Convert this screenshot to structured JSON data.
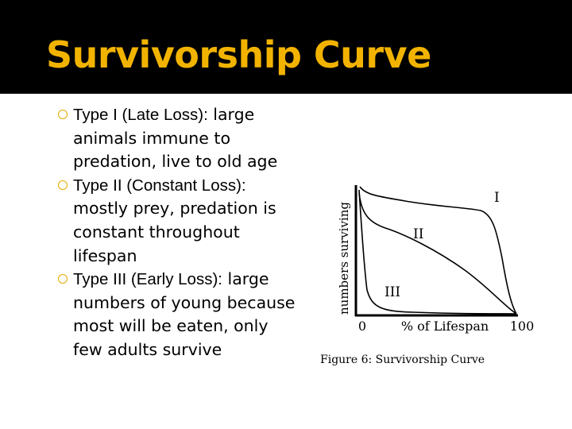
{
  "slide": {
    "title": "Survivorship Curve"
  },
  "bullets": [
    {
      "heading": "Type I (Late Loss):",
      "text": " large animals immune to predation, live to old age"
    },
    {
      "heading": "Type II (Constant Loss):",
      "text": " mostly prey, predation is constant throughout lifespan"
    },
    {
      "heading": "Type III (Early Loss):",
      "text": " large numbers of young because most will be eaten, only few adults survive"
    }
  ],
  "figure": {
    "caption": "Figure 6: Survivorship Curve",
    "y_axis_label": "numbers surviving",
    "x_axis_label": "% of Lifespan",
    "x_tick_start": "0",
    "x_tick_end": "100",
    "curve_labels": {
      "type1": "I",
      "type2": "II",
      "type3": "III"
    }
  },
  "colors": {
    "title_bar": "#000000",
    "title_text": "#f2b300",
    "bullet_marker": "#e3a800",
    "body_text": "#000000"
  }
}
